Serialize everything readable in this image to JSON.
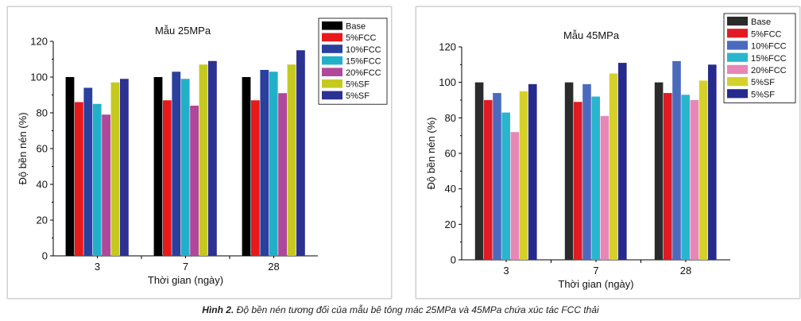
{
  "caption": {
    "label": "Hình 2.",
    "text": "Độ bền nén tương đối của mẫu bê tông mác 25MPa và 45MPa chứa xúc tác FCC thải"
  },
  "chart_data": [
    {
      "type": "bar",
      "title": "Mẫu 25MPa",
      "xlabel": "Thời gian (ngày)",
      "ylabel": "Độ bền nén (%)",
      "ylim": [
        0,
        120
      ],
      "yticks": [
        0,
        20,
        40,
        60,
        80,
        100,
        120
      ],
      "categories": [
        "3",
        "7",
        "28"
      ],
      "legend_position": "top-right",
      "series": [
        {
          "name": "Base",
          "color": "#000000",
          "values": [
            100,
            100,
            100
          ]
        },
        {
          "name": "5%FCC",
          "color": "#e8191b",
          "values": [
            86,
            87,
            87
          ]
        },
        {
          "name": "10%FCC",
          "color": "#2a3f9e",
          "values": [
            94,
            103,
            104
          ]
        },
        {
          "name": "15%FCC",
          "color": "#22b0c9",
          "values": [
            85,
            99,
            103
          ]
        },
        {
          "name": "20%FCC",
          "color": "#b0479a",
          "values": [
            79,
            84,
            91
          ]
        },
        {
          "name": "5%SF",
          "color": "#c5c91f",
          "values": [
            97,
            107,
            107
          ]
        },
        {
          "name": "5%SF",
          "color": "#2d3192",
          "values": [
            99,
            109,
            115
          ]
        }
      ]
    },
    {
      "type": "bar",
      "title": "Mẫu 45MPa",
      "xlabel": "Thời gian (ngày)",
      "ylabel": "Độ bền nén (%)",
      "ylim": [
        0,
        120
      ],
      "yticks": [
        0,
        20,
        40,
        60,
        80,
        100,
        120
      ],
      "categories": [
        "3",
        "7",
        "28"
      ],
      "legend_position": "top-right",
      "series": [
        {
          "name": "Base",
          "color": "#2b2b2b",
          "values": [
            100,
            100,
            100
          ]
        },
        {
          "name": "5%FCC",
          "color": "#e01b24",
          "values": [
            90,
            89,
            94
          ]
        },
        {
          "name": "10%FCC",
          "color": "#4a6bbd",
          "values": [
            94,
            99,
            112
          ]
        },
        {
          "name": "15%FCC",
          "color": "#2ab5cf",
          "values": [
            83,
            92,
            93
          ]
        },
        {
          "name": "20%FCC",
          "color": "#e986b8",
          "values": [
            72,
            81,
            90
          ]
        },
        {
          "name": "5%SF",
          "color": "#d6d12a",
          "values": [
            95,
            105,
            101
          ]
        },
        {
          "name": "5%SF",
          "color": "#262a8c",
          "values": [
            99,
            111,
            110
          ]
        }
      ]
    }
  ]
}
